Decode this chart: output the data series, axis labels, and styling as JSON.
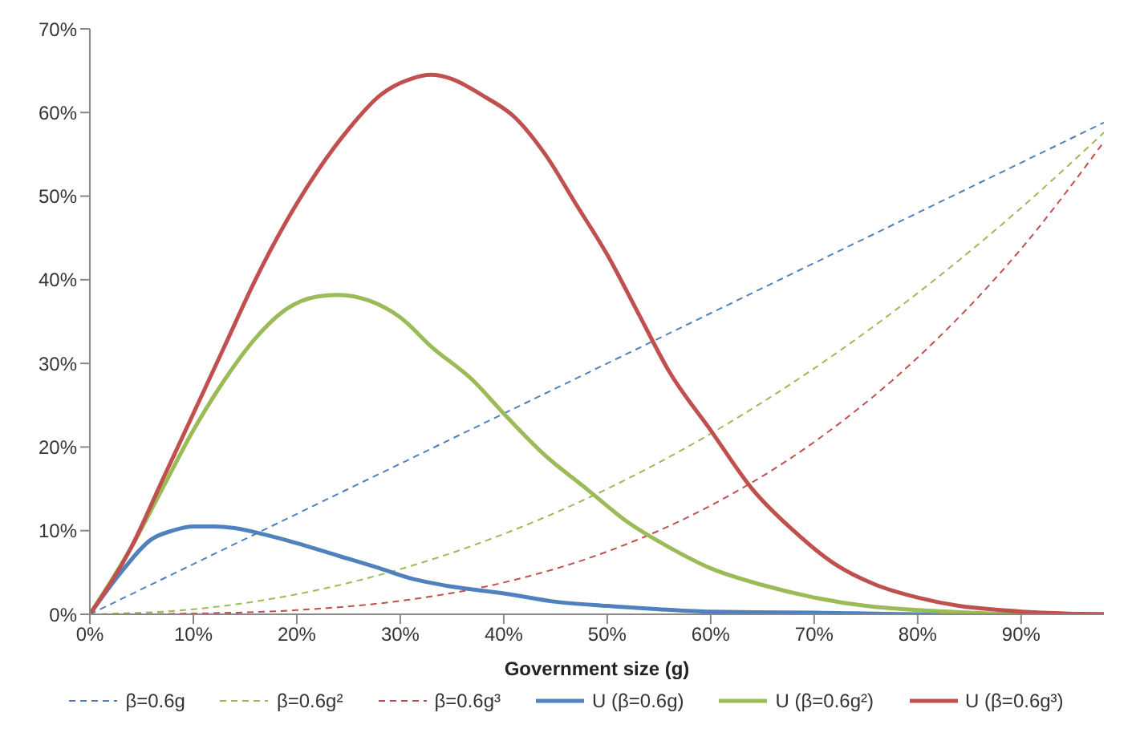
{
  "chart_data": {
    "type": "line",
    "xlabel": "Government size (g)",
    "xlim": [
      0,
      98
    ],
    "xticks": [
      {
        "value": 0,
        "label": "0%"
      },
      {
        "value": 10,
        "label": "10%"
      },
      {
        "value": 20,
        "label": "20%"
      },
      {
        "value": 30,
        "label": "30%"
      },
      {
        "value": 40,
        "label": "40%"
      },
      {
        "value": 50,
        "label": "50%"
      },
      {
        "value": 60,
        "label": "60%"
      },
      {
        "value": 70,
        "label": "70%"
      },
      {
        "value": 80,
        "label": "80%"
      },
      {
        "value": 90,
        "label": "90%"
      }
    ],
    "ylim": [
      0,
      70
    ],
    "yticks": [
      {
        "value": 0,
        "label": "0%"
      },
      {
        "value": 10,
        "label": "10%"
      },
      {
        "value": 20,
        "label": "20%"
      },
      {
        "value": 30,
        "label": "30%"
      },
      {
        "value": 40,
        "label": "40%"
      },
      {
        "value": 50,
        "label": "50%"
      },
      {
        "value": 60,
        "label": "60%"
      },
      {
        "value": 70,
        "label": "70%"
      }
    ],
    "grid": false,
    "legend": "bottom",
    "marker": "none",
    "series": [
      {
        "name": "β=0.6g",
        "color": "#4f81bd",
        "line_style": "dashed",
        "x": [
          0,
          98
        ],
        "values": [
          0,
          58.8
        ]
      },
      {
        "name": "β=0.6g²",
        "color": "#9bbb59",
        "line_style": "dashed",
        "x": [
          0,
          10,
          20,
          30,
          40,
          50,
          60,
          70,
          80,
          90,
          98
        ],
        "values": [
          0,
          0.6,
          2.4,
          5.4,
          9.6,
          15,
          21.6,
          29.4,
          38.4,
          48.6,
          57.6
        ]
      },
      {
        "name": "β=0.6g³",
        "color": "#c0504d",
        "line_style": "dashed",
        "x": [
          0,
          10,
          20,
          30,
          40,
          50,
          60,
          70,
          80,
          90,
          98
        ],
        "values": [
          0,
          0.1,
          0.5,
          1.6,
          3.8,
          7.5,
          13,
          20.6,
          30.7,
          43.7,
          56.5
        ]
      },
      {
        "name": "U (β=0.6g)",
        "color": "#4f81bd",
        "line_style": "solid",
        "x": [
          0,
          3,
          6,
          8,
          10,
          12,
          14,
          17,
          20,
          24,
          28,
          31,
          35,
          40,
          45,
          50,
          55,
          60,
          70,
          80,
          98
        ],
        "values": [
          0,
          5,
          9,
          10,
          10.5,
          10.5,
          10.3,
          9.5,
          8.5,
          7,
          5.5,
          4.3,
          3.3,
          2.5,
          1.5,
          1,
          0.6,
          0.3,
          0.2,
          0,
          0
        ]
      },
      {
        "name": "U (β=0.6g²)",
        "color": "#9bbb59",
        "line_style": "solid",
        "x": [
          0,
          4,
          7,
          10,
          13,
          16,
          19,
          22,
          24,
          27,
          30,
          33,
          37,
          40,
          44,
          48,
          52,
          56,
          60,
          65,
          70,
          75,
          80,
          85,
          90,
          98
        ],
        "values": [
          0,
          8,
          15,
          22,
          28,
          33,
          36.5,
          38,
          38.2,
          37.5,
          35.5,
          32,
          28,
          24,
          19,
          15,
          11,
          8,
          5.5,
          3.5,
          2,
          1,
          0.5,
          0.2,
          0,
          0
        ]
      },
      {
        "name": "U (β=0.6g³)",
        "color": "#c0504d",
        "line_style": "solid",
        "x": [
          0,
          4,
          7,
          10,
          13,
          16,
          19,
          22,
          25,
          28,
          31,
          33,
          35,
          38,
          41,
          44,
          47,
          50,
          53,
          56,
          60,
          64,
          68,
          72,
          76,
          80,
          84,
          88,
          92,
          98
        ],
        "values": [
          0,
          8,
          16,
          24,
          32,
          40,
          47,
          53,
          58,
          62,
          64,
          64.5,
          64,
          62,
          59.5,
          55,
          49,
          43,
          36,
          29,
          22,
          15,
          10,
          6,
          3.5,
          2,
          1,
          0.5,
          0.2,
          0
        ]
      }
    ]
  }
}
